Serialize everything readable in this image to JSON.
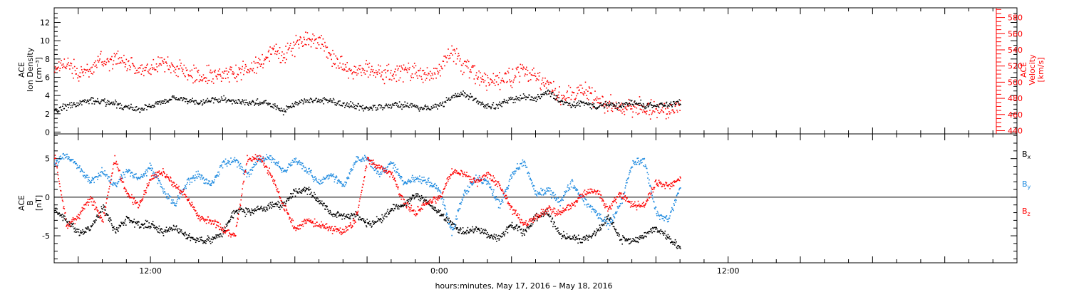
{
  "xlabel": "hours:minutes, May 17, 2016 – May 18, 2016",
  "colors": {
    "black": "#000000",
    "red": "#ff0000",
    "blue": "#1f8be0"
  },
  "chart_data": [
    {
      "type": "scatter",
      "panel": "top",
      "xlabel": "hours:minutes, May 17, 2016 – May 18, 2016",
      "x_unit": "hours since 2016-05-17 00:00",
      "xlim": [
        8.0,
        48.0
      ],
      "x_ticks": [
        {
          "x": 12,
          "label": "12:00"
        },
        {
          "x": 24,
          "label": "0:00"
        },
        {
          "x": 36,
          "label": "12:00"
        }
      ],
      "left_axis": {
        "label_lines": [
          "ACE",
          "Ion Density",
          "[cm⁻³]"
        ],
        "ylim": [
          -0.2,
          13.6
        ],
        "ticks": [
          0,
          2,
          4,
          6,
          8,
          10,
          12
        ],
        "color": "#000000"
      },
      "right_axis": {
        "label_lines": [
          "ACE",
          "Velocity",
          "[km/s]"
        ],
        "ylim": [
          436,
          592
        ],
        "ticks": [
          440,
          460,
          480,
          500,
          520,
          540,
          560,
          580
        ],
        "color": "#ff0000"
      },
      "series": [
        {
          "axis": "left",
          "color": "#000000",
          "x": [
            8.0,
            8.5,
            9.0,
            9.5,
            10.0,
            10.5,
            11.0,
            11.5,
            12.0,
            12.5,
            13.0,
            13.5,
            14.0,
            14.5,
            15.0,
            15.5,
            16.0,
            16.5,
            17.0,
            17.5,
            18.0,
            18.5,
            19.0,
            19.5,
            20.0,
            20.5,
            21.0,
            21.5,
            22.0,
            22.5,
            23.0,
            23.5,
            24.0,
            24.5,
            25.0,
            25.5,
            26.0,
            26.5,
            27.0,
            27.5,
            28.0,
            28.5,
            29.0,
            29.5,
            30.0,
            30.5,
            31.0,
            31.5,
            32.0,
            32.5,
            33.0,
            33.5,
            34.0
          ],
          "y": [
            2.4,
            2.9,
            3.2,
            3.5,
            3.4,
            3.1,
            2.8,
            2.5,
            2.9,
            3.4,
            3.8,
            3.6,
            3.3,
            3.5,
            3.7,
            3.4,
            3.2,
            3.3,
            3.0,
            2.3,
            3.2,
            3.5,
            3.6,
            3.4,
            3.1,
            2.8,
            2.7,
            2.8,
            2.9,
            3.0,
            2.8,
            2.7,
            3.0,
            3.8,
            4.2,
            3.6,
            2.7,
            3.1,
            3.6,
            3.9,
            3.7,
            4.5,
            3.4,
            3.0,
            3.3,
            2.8,
            3.1,
            2.9,
            3.4,
            3.0,
            2.9,
            3.1,
            3.4
          ]
        },
        {
          "axis": "right",
          "color": "#ff0000",
          "x": [
            8.0,
            8.5,
            9.0,
            9.5,
            10.0,
            10.5,
            11.0,
            11.5,
            12.0,
            12.5,
            13.0,
            13.5,
            14.0,
            14.5,
            15.0,
            15.5,
            16.0,
            16.5,
            17.0,
            17.5,
            18.0,
            18.5,
            19.0,
            19.5,
            20.0,
            20.5,
            21.0,
            21.5,
            22.0,
            22.5,
            23.0,
            23.5,
            24.0,
            24.5,
            25.0,
            25.5,
            26.0,
            26.5,
            27.0,
            27.5,
            28.0,
            28.5,
            29.0,
            29.5,
            30.0,
            30.5,
            31.0,
            31.5,
            32.0,
            32.5,
            33.0,
            33.5,
            34.0
          ],
          "y": [
            517,
            525,
            512,
            520,
            528,
            530,
            522,
            515,
            518,
            525,
            520,
            512,
            508,
            510,
            512,
            509,
            517,
            524,
            540,
            535,
            545,
            550,
            555,
            528,
            520,
            515,
            516,
            512,
            510,
            514,
            515,
            508,
            516,
            540,
            521,
            510,
            500,
            505,
            508,
            515,
            505,
            500,
            482,
            485,
            490,
            480,
            475,
            470,
            470,
            468,
            467,
            465,
            476
          ]
        }
      ]
    },
    {
      "type": "scatter",
      "panel": "bottom",
      "xlim": [
        8.0,
        48.0
      ],
      "left_axis": {
        "label_lines": [
          "ACE",
          "B",
          "[nT]"
        ],
        "ylim": [
          -8.5,
          8.2
        ],
        "ticks": [
          -5,
          0,
          5
        ],
        "color": "#000000"
      },
      "zero_line": 0,
      "legend": {
        "position": "right",
        "entries": [
          {
            "base": "B",
            "sub": "x",
            "color": "#000000"
          },
          {
            "base": "B",
            "sub": "y",
            "color": "#1f8be0"
          },
          {
            "base": "B",
            "sub": "z",
            "color": "#ff0000"
          }
        ]
      },
      "series": [
        {
          "name": "Bx",
          "color": "#000000",
          "x": [
            8.0,
            8.5,
            9.0,
            9.5,
            10.0,
            10.5,
            11.0,
            11.5,
            12.0,
            12.5,
            13.0,
            13.5,
            14.0,
            14.5,
            15.0,
            15.5,
            16.0,
            16.5,
            17.0,
            17.5,
            18.0,
            18.5,
            19.0,
            19.5,
            20.0,
            20.5,
            21.0,
            21.5,
            22.0,
            22.5,
            23.0,
            23.5,
            24.0,
            24.5,
            25.0,
            25.5,
            26.0,
            26.5,
            27.0,
            27.5,
            28.0,
            28.5,
            29.0,
            29.5,
            30.0,
            30.5,
            31.0,
            31.5,
            32.0,
            32.5,
            33.0,
            33.5,
            34.0
          ],
          "y": [
            -1.5,
            -3.0,
            -4.5,
            -4.0,
            -1.2,
            -4.2,
            -2.8,
            -3.6,
            -3.5,
            -4.5,
            -3.8,
            -5.0,
            -5.5,
            -5.6,
            -4.5,
            -1.5,
            -1.8,
            -1.5,
            -1.0,
            -0.8,
            0.8,
            1.0,
            -0.5,
            -2.0,
            -2.5,
            -2.2,
            -3.5,
            -3.0,
            -1.5,
            -1.0,
            0.5,
            -0.5,
            -2.0,
            -3.5,
            -4.5,
            -4.0,
            -4.8,
            -5.2,
            -3.5,
            -4.5,
            -2.5,
            -2.0,
            -4.8,
            -5.2,
            -5.5,
            -4.5,
            -2.5,
            -5.3,
            -5.6,
            -4.8,
            -4.0,
            -5.2,
            -6.5
          ]
        },
        {
          "name": "By",
          "color": "#1f8be0",
          "x": [
            8.0,
            8.5,
            9.0,
            9.5,
            10.0,
            10.5,
            11.0,
            11.5,
            12.0,
            12.5,
            13.0,
            13.5,
            14.0,
            14.5,
            15.0,
            15.5,
            16.0,
            16.5,
            17.0,
            17.5,
            18.0,
            18.5,
            19.0,
            19.5,
            20.0,
            20.5,
            21.0,
            21.5,
            22.0,
            22.5,
            23.0,
            23.5,
            24.0,
            24.5,
            25.0,
            25.5,
            26.0,
            26.5,
            27.0,
            27.5,
            28.0,
            28.5,
            29.0,
            29.5,
            30.0,
            30.5,
            31.0,
            31.5,
            32.0,
            32.5,
            33.0,
            33.5,
            34.0
          ],
          "y": [
            4.5,
            5.5,
            4.0,
            2.0,
            3.5,
            1.5,
            3.5,
            2.5,
            4.0,
            1.0,
            -1.0,
            2.0,
            3.0,
            1.5,
            4.5,
            4.8,
            3.0,
            5.0,
            5.2,
            3.5,
            5.0,
            3.5,
            2.0,
            3.0,
            1.5,
            4.8,
            5.0,
            3.0,
            4.5,
            2.0,
            2.5,
            2.0,
            1.0,
            -4.5,
            0.5,
            2.5,
            2.0,
            -1.0,
            3.0,
            4.8,
            0.5,
            1.0,
            -0.5,
            2.0,
            -0.5,
            -2.0,
            -3.5,
            -1.0,
            4.5,
            4.8,
            -2.0,
            -3.0,
            1.5
          ]
        },
        {
          "name": "Bz",
          "color": "#ff0000",
          "x": [
            8.0,
            8.5,
            9.0,
            9.5,
            10.0,
            10.5,
            11.0,
            11.5,
            12.0,
            12.5,
            13.0,
            13.5,
            14.0,
            14.5,
            15.0,
            15.5,
            16.0,
            16.5,
            17.0,
            17.5,
            18.0,
            18.5,
            19.0,
            19.5,
            20.0,
            20.5,
            21.0,
            21.5,
            22.0,
            22.5,
            23.0,
            23.5,
            24.0,
            24.5,
            25.0,
            25.5,
            26.0,
            26.5,
            27.0,
            27.5,
            28.0,
            28.5,
            29.0,
            29.5,
            30.0,
            30.5,
            31.0,
            31.5,
            32.0,
            32.5,
            33.0,
            33.5,
            34.0
          ],
          "y": [
            5.5,
            -3.5,
            -2.5,
            0.0,
            -3.0,
            5.0,
            0.5,
            -1.0,
            2.5,
            3.5,
            1.5,
            0.0,
            -2.5,
            -3.0,
            -4.0,
            -5.0,
            5.0,
            5.2,
            3.0,
            -1.0,
            -4.0,
            -3.0,
            -3.5,
            -4.0,
            -4.5,
            -3.0,
            5.0,
            4.0,
            3.0,
            -0.5,
            -2.0,
            -0.5,
            0.0,
            3.5,
            3.0,
            2.0,
            3.0,
            1.5,
            -1.5,
            -3.5,
            -2.5,
            -1.5,
            -2.0,
            -1.0,
            0.5,
            1.0,
            -1.5,
            0.5,
            -1.0,
            -1.0,
            2.0,
            1.5,
            2.5
          ]
        }
      ]
    }
  ]
}
